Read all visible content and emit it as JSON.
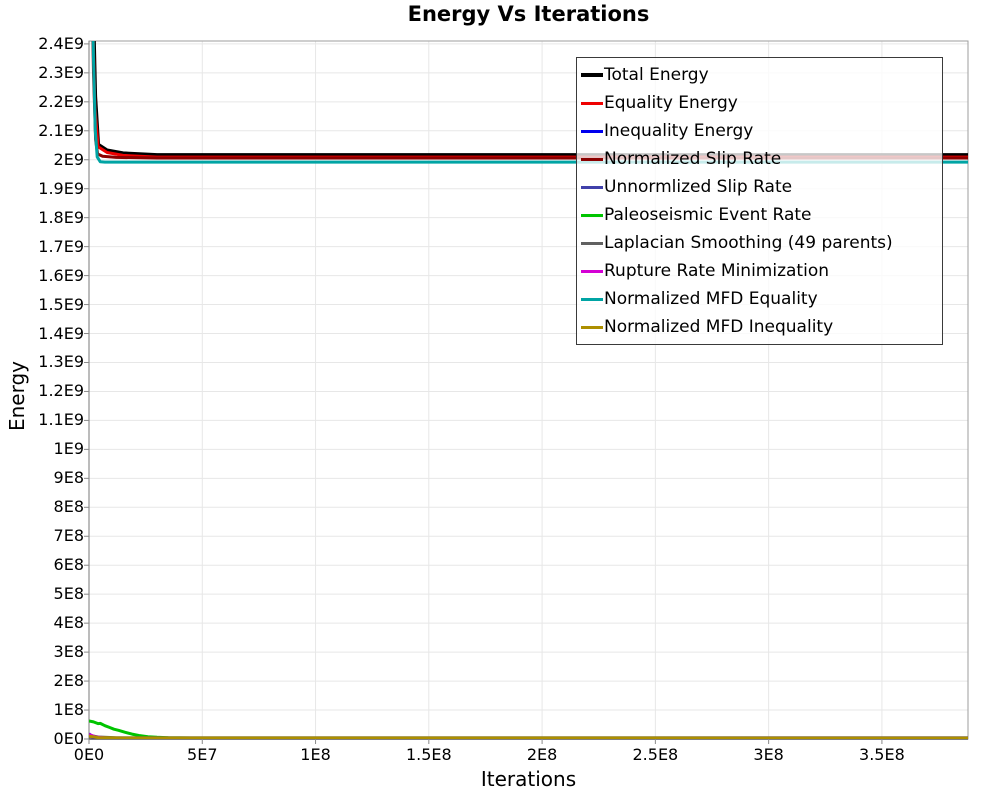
{
  "chart_data": {
    "type": "line",
    "title": "Energy Vs Iterations",
    "xlabel": "Iterations",
    "ylabel": "Energy",
    "xlim": [
      0,
      388000000
    ],
    "ylim": [
      0,
      2410000000
    ],
    "grid": true,
    "legend_position": "top-right-inside",
    "colors": {
      "grid": "#e7e7e7",
      "plot_border": "#9e9e9e",
      "bottom_axis": "#555555",
      "left_axis": "#7a7a7a",
      "tick_mark": "#8a8a8a",
      "legend_border": "#3a3a3a",
      "legend_background": "rgba(255,255,255,0.78)"
    },
    "x_ticks": {
      "values": [
        0,
        50000000,
        100000000,
        150000000,
        200000000,
        250000000,
        300000000,
        350000000
      ],
      "labels": [
        "0E0",
        "5E7",
        "1E8",
        "1.5E8",
        "2E8",
        "2.5E8",
        "3E8",
        "3.5E8"
      ]
    },
    "y_ticks": {
      "values": [
        0,
        100000000,
        200000000,
        300000000,
        400000000,
        500000000,
        600000000,
        700000000,
        800000000,
        900000000,
        1000000000,
        1100000000,
        1200000000,
        1300000000,
        1400000000,
        1500000000,
        1600000000,
        1700000000,
        1800000000,
        1900000000,
        2000000000,
        2100000000,
        2200000000,
        2300000000,
        2400000000
      ],
      "labels": [
        "0E0",
        "1E8",
        "2E8",
        "3E8",
        "4E8",
        "5E8",
        "6E8",
        "7E8",
        "8E8",
        "9E8",
        "1E9",
        "1.1E9",
        "1.2E9",
        "1.3E9",
        "1.4E9",
        "1.5E9",
        "1.6E9",
        "1.7E9",
        "1.8E9",
        "1.9E9",
        "2E9",
        "2.1E9",
        "2.2E9",
        "2.3E9",
        "2.4E9"
      ]
    },
    "series": [
      {
        "name": "Total Energy",
        "color": "#000000",
        "width": 4,
        "points": [
          [
            0,
            3200000000
          ],
          [
            1700000,
            2550000000
          ],
          [
            2700000,
            2220000000
          ],
          [
            4000000,
            2052000000
          ],
          [
            8000000,
            2032000000
          ],
          [
            15000000,
            2022000000
          ],
          [
            30000000,
            2016000000
          ],
          [
            388000000,
            2016000000
          ]
        ]
      },
      {
        "name": "Equality Energy",
        "color": "#ee0000",
        "width": 3,
        "points": [
          [
            0,
            3100000000
          ],
          [
            1600000,
            2500000000
          ],
          [
            2600000,
            2180000000
          ],
          [
            4000000,
            2045000000
          ],
          [
            8000000,
            2025000000
          ],
          [
            15000000,
            2015000000
          ],
          [
            30000000,
            2009000000
          ],
          [
            388000000,
            2009000000
          ]
        ]
      },
      {
        "name": "Inequality Energy",
        "color": "#0000ee",
        "width": 3,
        "points": [
          [
            0,
            18000000
          ],
          [
            2000000,
            6000000
          ],
          [
            5000000,
            1500000
          ],
          [
            388000000,
            1000000
          ]
        ]
      },
      {
        "name": "Normalized Slip Rate",
        "color": "#8b0000",
        "width": 3,
        "points": [
          [
            0,
            2950000000
          ],
          [
            1200000,
            2650000000
          ],
          [
            2000000,
            2300000000
          ],
          [
            2900000,
            2070000000
          ],
          [
            3800000,
            2020000000
          ],
          [
            6000000,
            2012000000
          ],
          [
            12000000,
            2008000000
          ],
          [
            30000000,
            2006000000
          ],
          [
            388000000,
            2006000000
          ]
        ]
      },
      {
        "name": "Unnormlized Slip Rate",
        "color": "#4040aa",
        "width": 3,
        "points": [
          [
            0,
            9000000
          ],
          [
            4000000,
            3000000
          ],
          [
            10000000,
            2000000
          ],
          [
            388000000,
            2000000
          ]
        ]
      },
      {
        "name": "Paleoseismic Event Rate",
        "color": "#00c400",
        "width": 3,
        "points": [
          [
            0,
            62000000
          ],
          [
            2000000,
            59000000
          ],
          [
            4000000,
            53000000
          ],
          [
            5000000,
            54000000
          ],
          [
            7000000,
            46000000
          ],
          [
            9000000,
            40000000
          ],
          [
            11000000,
            34000000
          ],
          [
            13000000,
            30000000
          ],
          [
            16000000,
            23000000
          ],
          [
            19000000,
            17000000
          ],
          [
            22000000,
            12000000
          ],
          [
            26000000,
            8000000
          ],
          [
            30000000,
            6000000
          ],
          [
            35000000,
            4500000
          ],
          [
            45000000,
            3500000
          ],
          [
            60000000,
            3000000
          ],
          [
            388000000,
            3000000
          ]
        ]
      },
      {
        "name": "Laplacian Smoothing (49 parents)",
        "color": "#606060",
        "width": 3,
        "points": [
          [
            0,
            13000000
          ],
          [
            4000000,
            7000000
          ],
          [
            12000000,
            4500000
          ],
          [
            30000000,
            4000000
          ],
          [
            388000000,
            4000000
          ]
        ]
      },
      {
        "name": "Rupture Rate Minimization",
        "color": "#d400d4",
        "width": 3,
        "points": [
          [
            0,
            16000000
          ],
          [
            3000000,
            7000000
          ],
          [
            8000000,
            3000000
          ],
          [
            20000000,
            2200000
          ],
          [
            388000000,
            2000000
          ]
        ]
      },
      {
        "name": "Normalized MFD Equality",
        "color": "#00a4a4",
        "width": 3,
        "points": [
          [
            0,
            3000000000
          ],
          [
            1200000,
            2700000000
          ],
          [
            2000000,
            2350000000
          ],
          [
            2800000,
            2100000000
          ],
          [
            3600000,
            2010000000
          ],
          [
            5000000,
            1993000000
          ],
          [
            7000000,
            1992000000
          ],
          [
            388000000,
            1992000000
          ]
        ]
      },
      {
        "name": "Normalized MFD Inequality",
        "color": "#ad8f00",
        "width": 3,
        "points": [
          [
            0,
            10000000
          ],
          [
            4000000,
            5000000
          ],
          [
            15000000,
            3500000
          ],
          [
            388000000,
            3200000
          ]
        ]
      }
    ]
  }
}
